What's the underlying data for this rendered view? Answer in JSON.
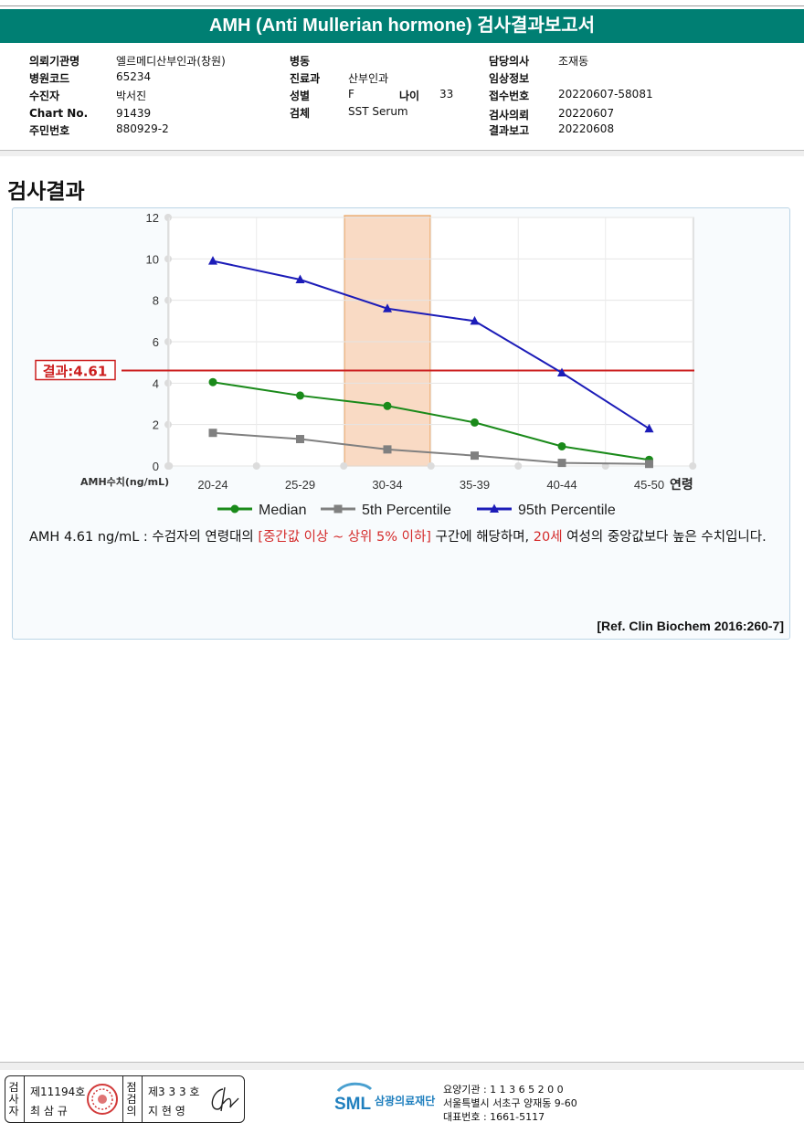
{
  "report": {
    "title": "AMH (Anti Mullerian hormone) 검사결과보고서"
  },
  "header": {
    "left": [
      {
        "label": "의뢰기관명",
        "value": "엘르메디산부인과(창원)"
      },
      {
        "label": "병원코드",
        "value": "65234"
      },
      {
        "label": "수진자",
        "value": "박서진"
      },
      {
        "label": "Chart No.",
        "value": "91439"
      },
      {
        "label": "주민번호",
        "value": "880929-2"
      }
    ],
    "middle": [
      {
        "label": "병동",
        "value": ""
      },
      {
        "label": "진료과",
        "value": "산부인과"
      },
      {
        "label": "성별",
        "value": "F"
      },
      {
        "label": "검체",
        "value": "SST Serum"
      }
    ],
    "age": {
      "label": "나이",
      "value": "33"
    },
    "right": [
      {
        "label": "담당의사",
        "value": "조재동"
      },
      {
        "label": "임상정보",
        "value": ""
      },
      {
        "label": "접수번호",
        "value": "20220607-58081"
      },
      {
        "label": "검사의뢰",
        "value": "20220607"
      },
      {
        "label": "결과보고",
        "value": "20220608"
      }
    ]
  },
  "section": {
    "title": "검사결과"
  },
  "chart_data": {
    "type": "line",
    "categories": [
      "20-24",
      "25-29",
      "30-34",
      "35-39",
      "40-44",
      "45-50"
    ],
    "xlabel": "연령",
    "ylabel": "AMH수치(ng/mL)",
    "ylim": [
      0,
      12
    ],
    "yticks": [
      "0",
      "2",
      "4",
      "6",
      "8",
      "10",
      "12"
    ],
    "grid": true,
    "legend": "bottom",
    "highlight_category": "30-34",
    "highlight_color": "#f7cdb0",
    "result_line": {
      "value": 4.61,
      "label": "결과:4.61",
      "color": "#cc1f1f"
    },
    "series": [
      {
        "name": "Median",
        "color": "#1a8a1a",
        "marker": "circle",
        "values": [
          4.05,
          3.4,
          2.9,
          2.1,
          0.95,
          0.3
        ]
      },
      {
        "name": "5th Percentile",
        "color": "#808080",
        "marker": "square",
        "values": [
          1.6,
          1.3,
          0.8,
          0.5,
          0.15,
          0.1
        ]
      },
      {
        "name": "95th Percentile",
        "color": "#1c1cb8",
        "marker": "triangle",
        "values": [
          9.9,
          9.0,
          7.6,
          7.0,
          4.5,
          1.8
        ]
      }
    ]
  },
  "result_text": {
    "prefix": "AMH  4.61 ng/mL : 수검자의 연령대의 ",
    "range": "[중간값 이상 ~ 상위 5% 이하]",
    "middle": "  구간에 해당하며, ",
    "age": "20세",
    "suffix": " 여성의 중앙값보다 높은 수치입니다."
  },
  "reference": "[Ref. Clin Biochem 2016:260-7]",
  "footer": {
    "inspector_label": "검사자",
    "inspector_no": "제11194호",
    "inspector_name": "최 삼 규",
    "confirmer_label": "점검의",
    "confirmer_no": "제3 3 3 호",
    "confirmer_name": "지 현 영",
    "logo_text": "SML",
    "org_name": "삼광의료재단",
    "org_code": "요양기관 : 1 1 3 6 5 2 0 0",
    "org_address": "서울특별시 서초구 양재동 9-60",
    "org_phone": "대표번호 : 1661-5117"
  },
  "colors": {
    "title_bar": "#007f73",
    "emphasis_red": "#d42b2b"
  }
}
